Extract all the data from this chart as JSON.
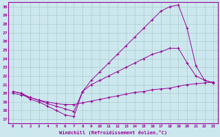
{
  "xlabel": "Windchill (Refroidissement éolien,°C)",
  "bg_color": "#cce8ee",
  "grid_color": "#aacccc",
  "line_color": "#990099",
  "xlim": [
    -0.5,
    23.5
  ],
  "ylim": [
    16.5,
    30.5
  ],
  "xticks": [
    0,
    1,
    2,
    3,
    4,
    5,
    6,
    7,
    8,
    9,
    10,
    11,
    12,
    13,
    14,
    15,
    16,
    17,
    18,
    19,
    20,
    21,
    22,
    23
  ],
  "yticks": [
    17,
    18,
    19,
    20,
    21,
    22,
    23,
    24,
    25,
    26,
    27,
    28,
    29,
    30
  ],
  "line1_x": [
    0,
    1,
    2,
    3,
    4,
    5,
    6,
    7,
    8,
    9,
    10,
    11,
    12,
    13,
    14,
    15,
    16,
    17,
    18,
    19,
    20,
    21,
    22,
    23
  ],
  "line1_y": [
    20.0,
    19.8,
    19.5,
    19.2,
    19.0,
    18.8,
    18.7,
    18.7,
    18.9,
    19.1,
    19.3,
    19.5,
    19.7,
    19.9,
    20.1,
    20.2,
    20.4,
    20.5,
    20.6,
    20.8,
    21.0,
    21.1,
    21.2,
    21.3
  ],
  "line2_x": [
    0,
    1,
    2,
    3,
    4,
    5,
    6,
    7,
    8,
    9,
    10,
    11,
    12,
    13,
    14,
    15,
    16,
    17,
    18,
    19,
    20,
    21,
    22,
    23
  ],
  "line2_y": [
    20.2,
    20.0,
    19.5,
    19.2,
    18.8,
    18.5,
    18.2,
    17.9,
    20.2,
    21.0,
    21.5,
    22.0,
    22.5,
    23.0,
    23.5,
    24.0,
    24.5,
    24.8,
    25.2,
    25.2,
    23.5,
    22.0,
    21.5,
    21.2
  ],
  "line3_x": [
    0,
    1,
    2,
    3,
    4,
    5,
    6,
    7,
    8,
    9,
    10,
    11,
    12,
    13,
    14,
    15,
    16,
    17,
    18,
    19,
    20,
    21,
    22,
    23
  ],
  "line3_y": [
    20.2,
    20.0,
    19.3,
    19.0,
    18.5,
    18.0,
    17.5,
    17.3,
    20.2,
    21.5,
    22.5,
    23.5,
    24.5,
    25.5,
    26.5,
    27.5,
    28.5,
    29.5,
    30.0,
    30.2,
    27.5,
    23.2,
    21.5,
    21.2
  ]
}
